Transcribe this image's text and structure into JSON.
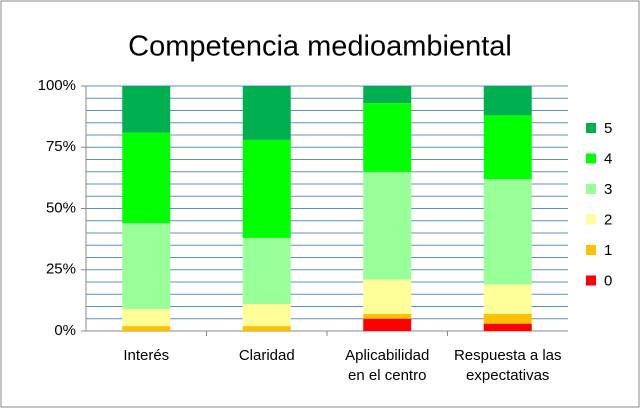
{
  "chart_data": {
    "type": "stacked_bar_100",
    "title": "Competencia medioambiental",
    "categories": [
      [
        "Interés"
      ],
      [
        "Claridad"
      ],
      [
        "Aplicabilidad",
        "en el centro"
      ],
      [
        "Respuesta a las",
        "expectativas"
      ]
    ],
    "series": [
      {
        "name": "0",
        "color": "#ff0000",
        "values": [
          0,
          0,
          5,
          3
        ]
      },
      {
        "name": "1",
        "color": "#ffc000",
        "values": [
          2,
          2,
          2,
          4
        ]
      },
      {
        "name": "2",
        "color": "#ffff99",
        "values": [
          7,
          9,
          14,
          12
        ]
      },
      {
        "name": "3",
        "color": "#99ff99",
        "values": [
          35,
          27,
          44,
          43
        ]
      },
      {
        "name": "4",
        "color": "#00ff00",
        "values": [
          37,
          40,
          28,
          26
        ]
      },
      {
        "name": "5",
        "color": "#00b050",
        "values": [
          19,
          22,
          7,
          12
        ]
      }
    ],
    "ylim": [
      0,
      100
    ],
    "yticks": [
      {
        "value": 0,
        "label": "0%"
      },
      {
        "value": 25,
        "label": "25%"
      },
      {
        "value": 50,
        "label": "50%"
      },
      {
        "value": 75,
        "label": "75%"
      },
      {
        "value": 100,
        "label": "100%"
      }
    ],
    "minor_yticks": [
      5,
      10,
      15,
      20,
      30,
      35,
      40,
      45,
      55,
      60,
      65,
      70,
      80,
      85,
      90,
      95
    ],
    "grid": true,
    "legend": "right"
  }
}
